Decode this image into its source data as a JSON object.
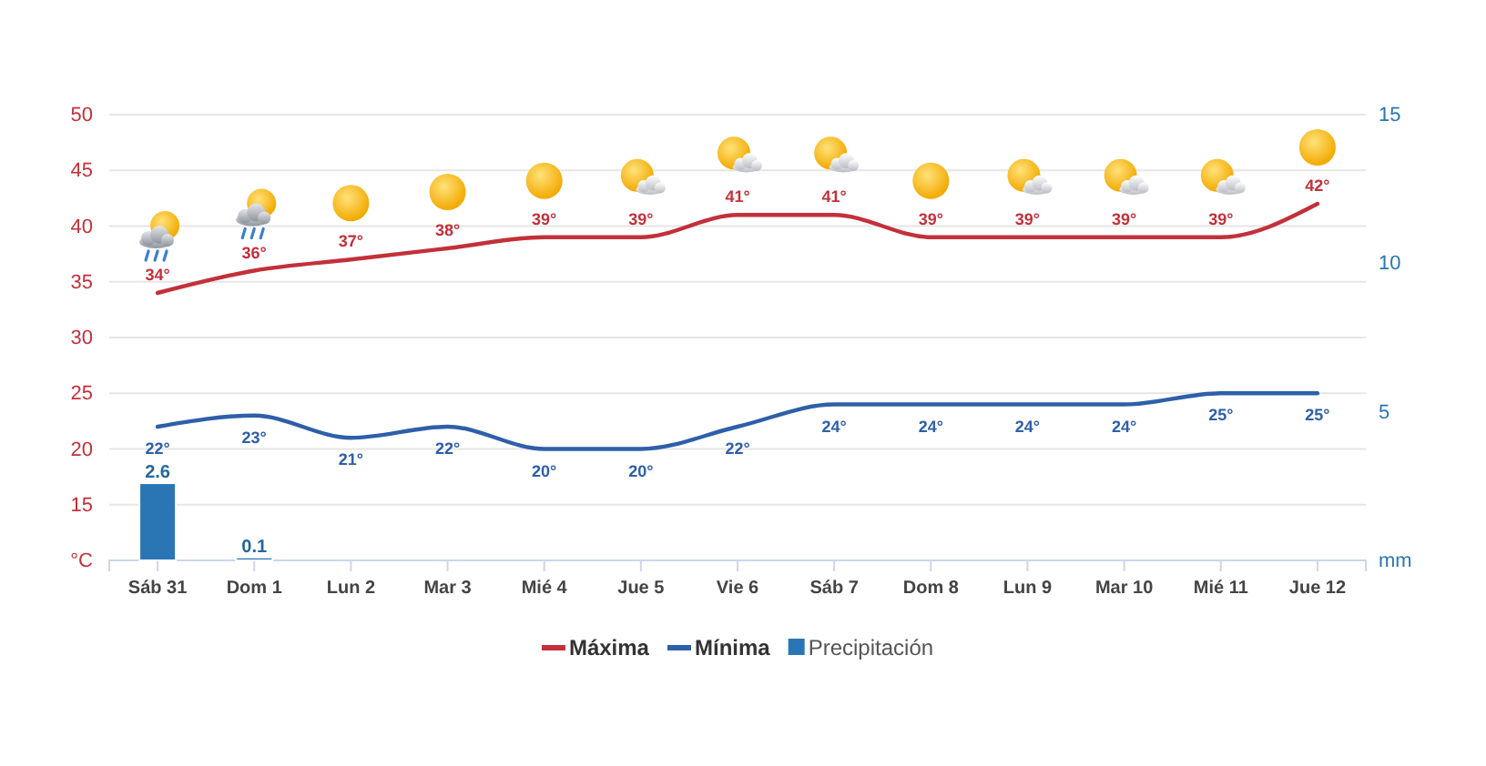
{
  "chart_data": {
    "type": "line",
    "categories": [
      "Sáb 31",
      "Dom 1",
      "Lun 2",
      "Mar 3",
      "Mié 4",
      "Jue 5",
      "Vie 6",
      "Sáb 7",
      "Dom 8",
      "Lun 9",
      "Mar 10",
      "Mié 11",
      "Jue 12"
    ],
    "series": [
      {
        "name": "Máxima",
        "color": "#c3303a",
        "values": [
          34,
          36,
          37,
          38,
          39,
          39,
          41,
          41,
          39,
          39,
          39,
          39,
          42
        ],
        "value_labels": [
          "34°",
          "36°",
          "37°",
          "38°",
          "39°",
          "39°",
          "41°",
          "41°",
          "39°",
          "39°",
          "39°",
          "39°",
          "42°"
        ]
      },
      {
        "name": "Mínima",
        "color": "#2e5fa9",
        "values": [
          22,
          23,
          21,
          22,
          20,
          20,
          22,
          24,
          24,
          24,
          24,
          25,
          25
        ],
        "value_labels": [
          "22°",
          "23°",
          "21°",
          "22°",
          "20°",
          "20°",
          "22°",
          "24°",
          "24°",
          "24°",
          "24°",
          "25°",
          "25°"
        ]
      },
      {
        "name": "Precipitación",
        "type": "bar",
        "axis": "y2",
        "color": "#2a76b5",
        "values": [
          2.6,
          0.1,
          null,
          null,
          null,
          null,
          null,
          null,
          null,
          null,
          null,
          null,
          null
        ],
        "value_labels": [
          "2.6",
          "0.1",
          null,
          null,
          null,
          null,
          null,
          null,
          null,
          null,
          null,
          null,
          null
        ]
      }
    ],
    "ylim": [
      10,
      50
    ],
    "yticks": [
      {
        "value": 10,
        "label": "°C"
      },
      15,
      20,
      25,
      30,
      35,
      40,
      45,
      50
    ],
    "y2lim": [
      0,
      15
    ],
    "y2ticks": [
      {
        "value": 0,
        "label": "mm"
      },
      5,
      10,
      15
    ],
    "grid": "y",
    "legend": "bottom"
  }
}
